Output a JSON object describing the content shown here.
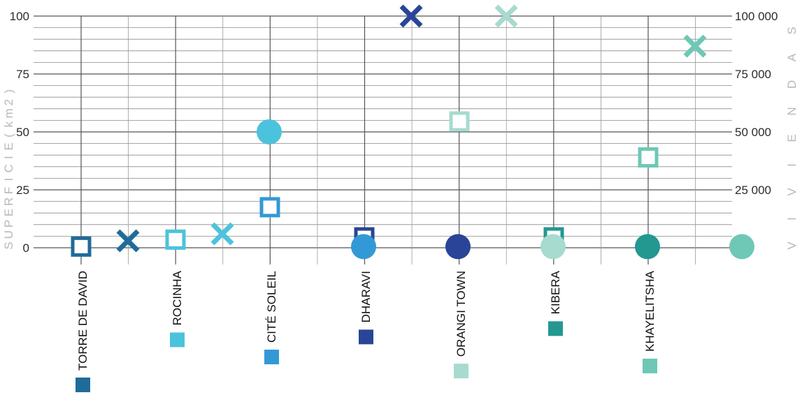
{
  "chart_data": {
    "type": "scatter",
    "categories": [
      "TORRE DE DAVID",
      "ROCINHA",
      "CITÉ SOLEIL",
      "DHARAVI",
      "ORANGI TOWN",
      "KIBERA",
      "KHAYELITSHA"
    ],
    "category_colors": [
      "#1f6b9a",
      "#4cc3dc",
      "#3399d6",
      "#2a4597",
      "#a7dbcf",
      "#229891",
      "#6ec8b5"
    ],
    "left_axis": {
      "label": "SUPERFICIE (km2)",
      "label_letters": [
        "S",
        "U",
        "P",
        "E",
        "R",
        "F",
        "I",
        "C",
        "I",
        "E",
        "(",
        "k",
        "m",
        "2",
        ")"
      ],
      "range": [
        0,
        100
      ],
      "ticks": [
        "0",
        "25",
        "50",
        "75",
        "100"
      ]
    },
    "right_axis": {
      "label": "VIVIENDAS",
      "label_letters": [
        "V",
        "I",
        "V",
        "I",
        "E",
        "N",
        "D",
        "A",
        "S"
      ],
      "range": [
        0,
        100000
      ],
      "ticks": [
        "0",
        "25 000",
        "50 000",
        "75 000",
        "100 000"
      ]
    },
    "grid": true,
    "series": [
      {
        "marker": "square",
        "values": [
          0.5,
          3.5,
          17.5,
          4.5,
          54.5,
          4.5,
          39
        ]
      },
      {
        "marker": "cross",
        "values": [
          3,
          6,
          null,
          100,
          100,
          null,
          87
        ]
      },
      {
        "marker": "circle",
        "values": [
          null,
          50,
          0.5,
          0.5,
          0.5,
          0.5,
          0.5
        ]
      }
    ]
  }
}
